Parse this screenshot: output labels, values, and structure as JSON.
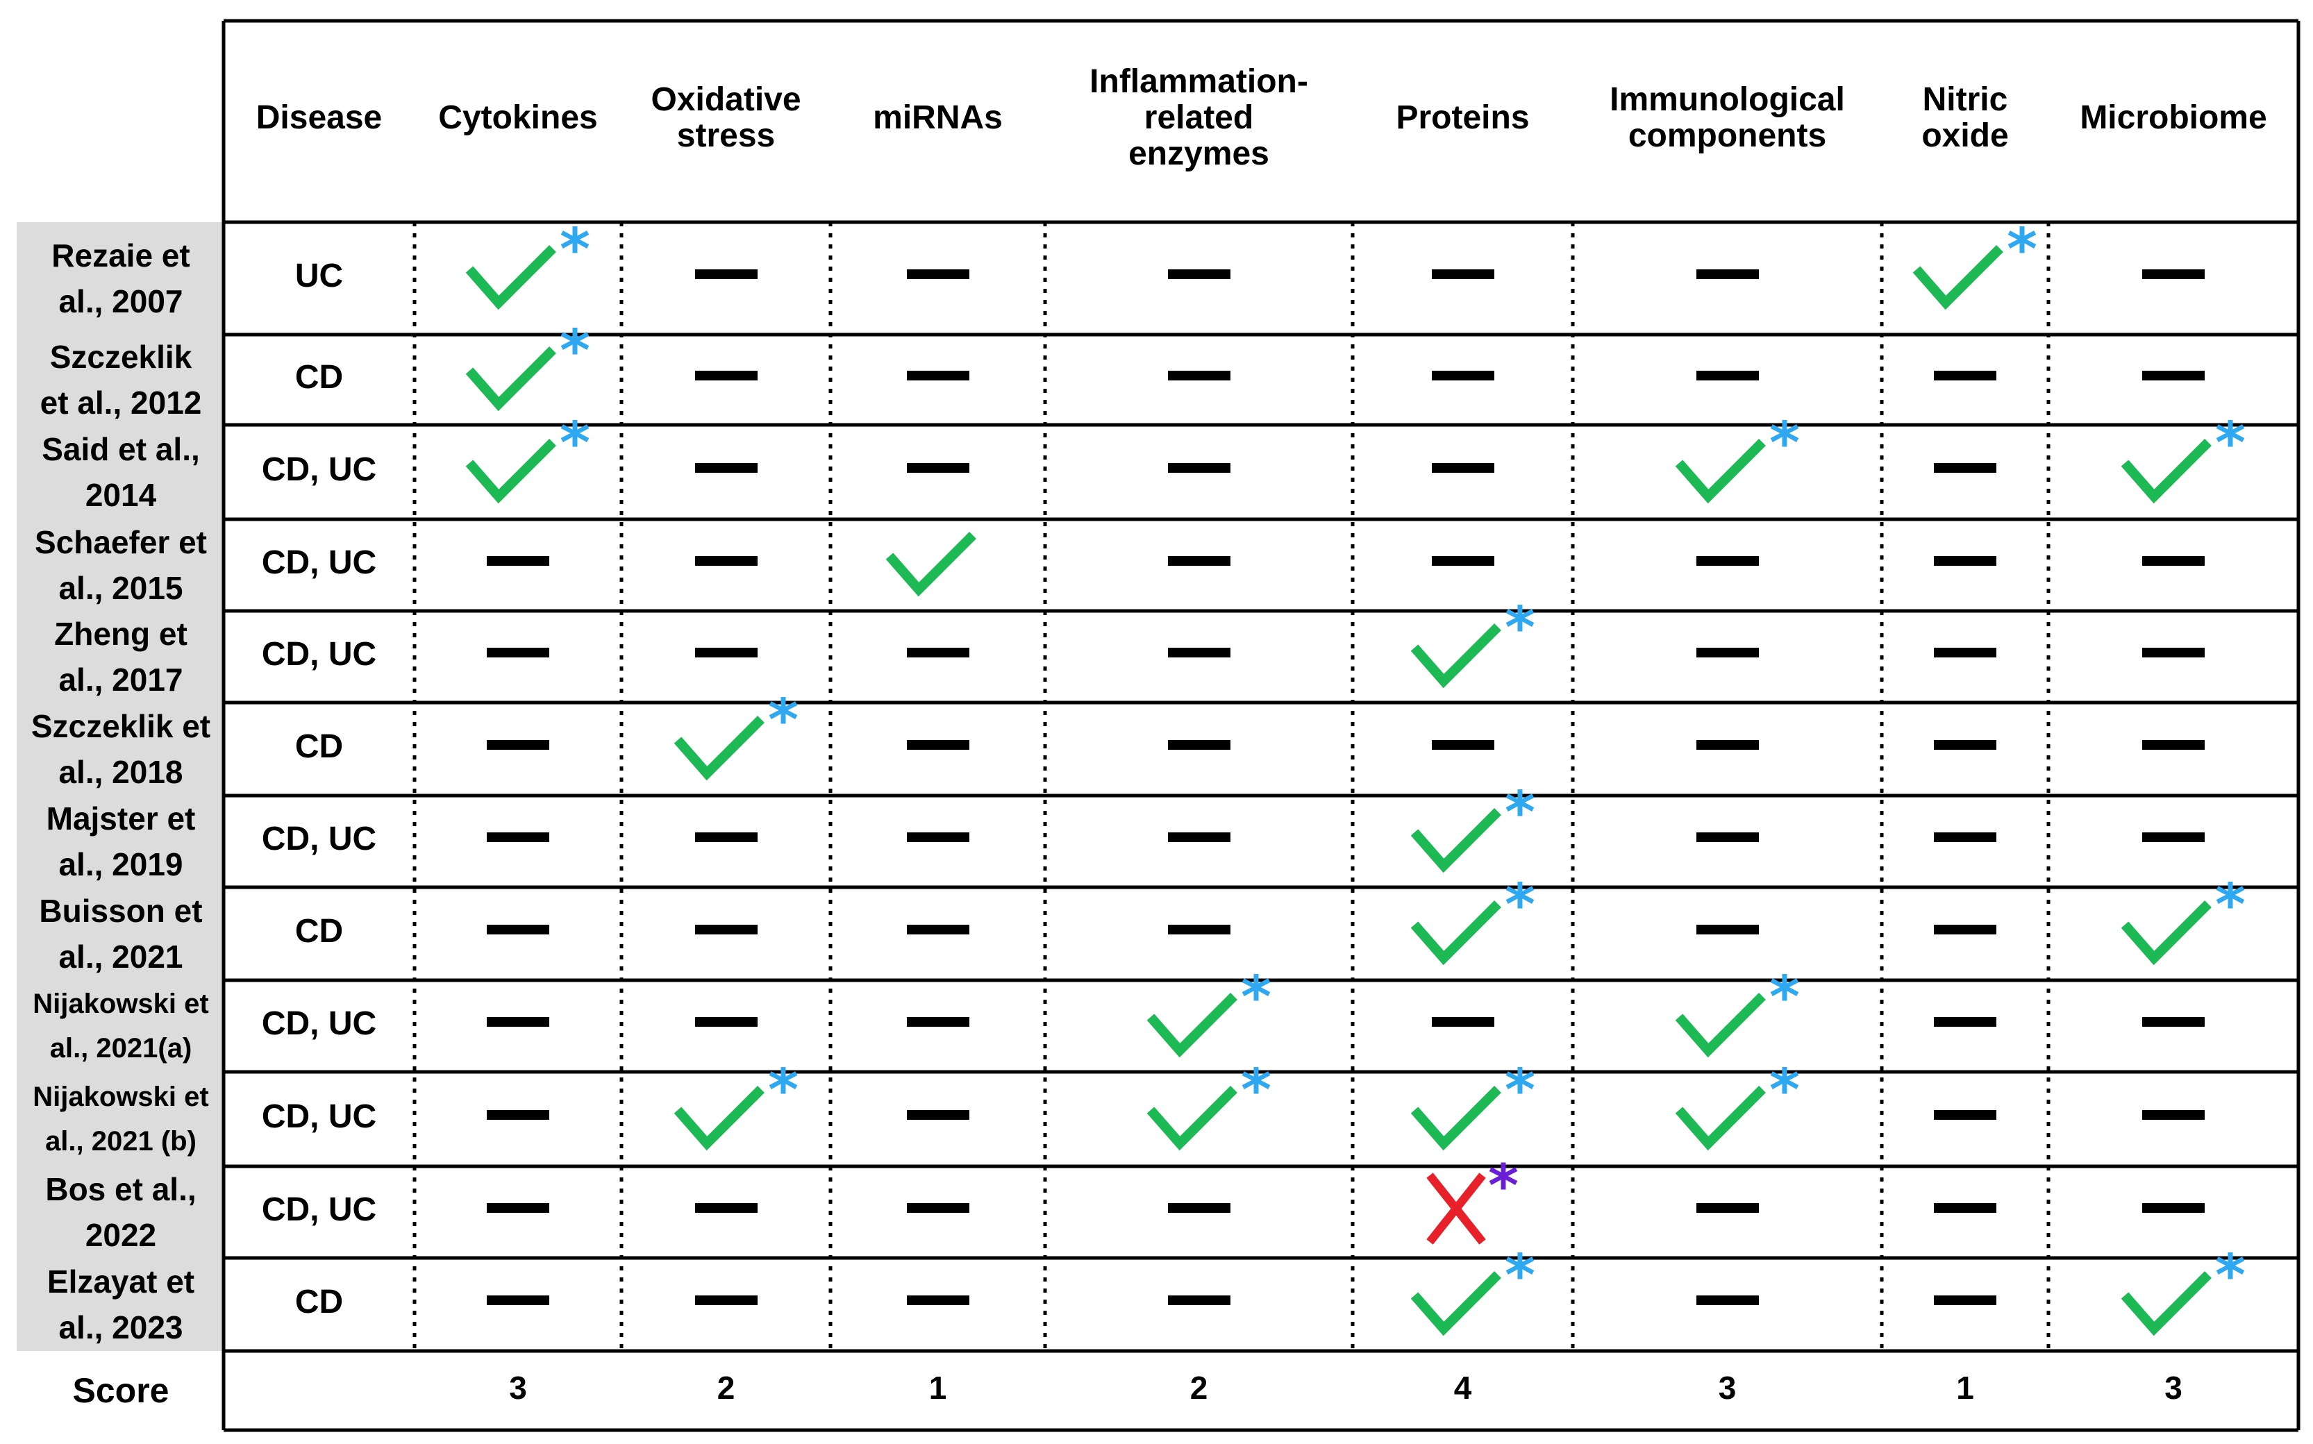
{
  "columns": [
    {
      "key": "disease",
      "label": "Disease"
    },
    {
      "key": "cytokines",
      "label": "Cytokines"
    },
    {
      "key": "oxidative",
      "label": "Oxidative\nstress"
    },
    {
      "key": "mirnas",
      "label": "miRNAs"
    },
    {
      "key": "enzymes",
      "label": "Inflammation-\nrelated\nenzymes"
    },
    {
      "key": "proteins",
      "label": "Proteins"
    },
    {
      "key": "immuno",
      "label": "Immunological\ncomponents"
    },
    {
      "key": "nitric",
      "label": "Nitric\noxide"
    },
    {
      "key": "microbiome",
      "label": "Microbiome"
    }
  ],
  "rows": [
    {
      "study": "Rezaie et\nal., 2007",
      "disease": "UC",
      "marks": [
        "check-star",
        "dash",
        "dash",
        "dash",
        "dash",
        "dash",
        "check-star",
        "dash"
      ]
    },
    {
      "study": "Szczeklik\net al.,  2012",
      "disease": "CD",
      "marks": [
        "check-star",
        "dash",
        "dash",
        "dash",
        "dash",
        "dash",
        "dash",
        "dash"
      ]
    },
    {
      "study": "Said et al.,\n2014",
      "disease": "CD, UC",
      "marks": [
        "check-star",
        "dash",
        "dash",
        "dash",
        "dash",
        "check-star",
        "dash",
        "check-star"
      ]
    },
    {
      "study": "Schaefer et\nal., 2015",
      "disease": "CD, UC",
      "marks": [
        "dash",
        "dash",
        "check",
        "dash",
        "dash",
        "dash",
        "dash",
        "dash"
      ]
    },
    {
      "study": "Zheng et\nal., 2017",
      "disease": "CD, UC",
      "marks": [
        "dash",
        "dash",
        "dash",
        "dash",
        "check-star",
        "dash",
        "dash",
        "dash"
      ]
    },
    {
      "study": "Szczeklik et\nal., 2018",
      "disease": "CD",
      "marks": [
        "dash",
        "check-star",
        "dash",
        "dash",
        "dash",
        "dash",
        "dash",
        "dash"
      ]
    },
    {
      "study": "Majster et\nal., 2019",
      "disease": "CD, UC",
      "marks": [
        "dash",
        "dash",
        "dash",
        "dash",
        "check-star",
        "dash",
        "dash",
        "dash"
      ]
    },
    {
      "study": "Buisson et\nal., 2021",
      "disease": "CD",
      "marks": [
        "dash",
        "dash",
        "dash",
        "dash",
        "check-star",
        "dash",
        "dash",
        "check-star"
      ]
    },
    {
      "study": "Nijakowski et\nal., 2021(a)",
      "disease": "CD, UC",
      "marks": [
        "dash",
        "dash",
        "dash",
        "check-star",
        "dash",
        "check-star",
        "dash",
        "dash"
      ]
    },
    {
      "study": "Nijakowski et\nal., 2021 (b)",
      "disease": "CD, UC",
      "marks": [
        "dash",
        "check-star",
        "dash",
        "check-star",
        "check-star",
        "check-star",
        "dash",
        "dash"
      ]
    },
    {
      "study": "Bos et al.,\n2022",
      "disease": "CD, UC",
      "marks": [
        "dash",
        "dash",
        "dash",
        "dash",
        "cross-star",
        "dash",
        "dash",
        "dash"
      ]
    },
    {
      "study": "Elzayat et\nal., 2023",
      "disease": "CD",
      "marks": [
        "dash",
        "dash",
        "dash",
        "dash",
        "check-star",
        "dash",
        "dash",
        "check-star"
      ]
    }
  ],
  "score": {
    "label": "Score",
    "values": [
      "3",
      "2",
      "1",
      "2",
      "4",
      "3",
      "1",
      "3"
    ]
  },
  "colors": {
    "check": "#1db954",
    "star": "#2ea8f0",
    "cross": "#e8202a",
    "cross_star": "#6a1fd6",
    "dash": "#000000",
    "study_bg": "#dcdcdc"
  }
}
